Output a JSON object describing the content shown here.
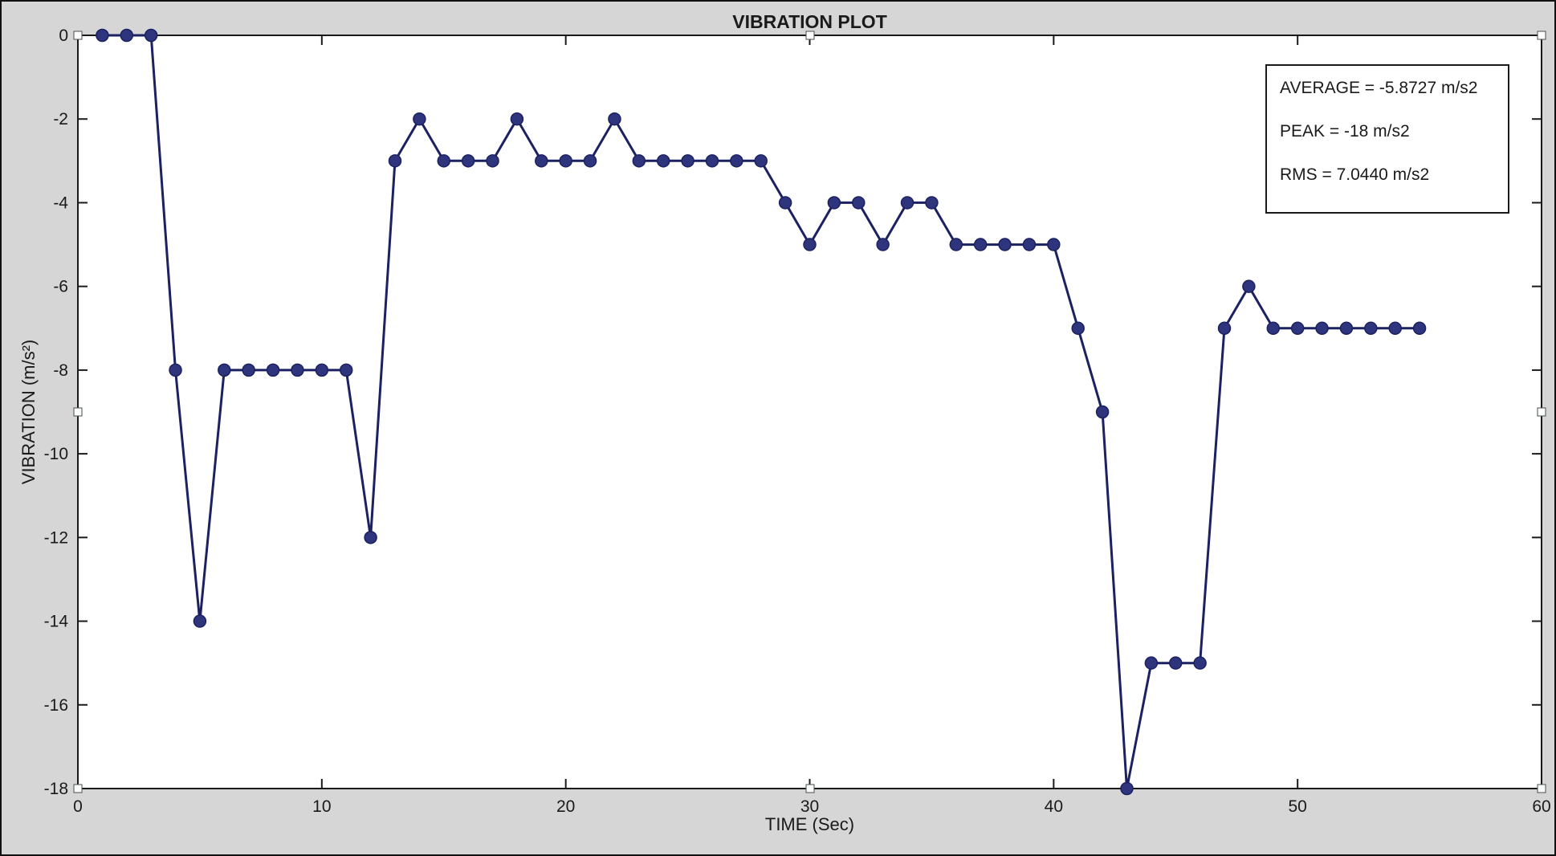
{
  "figure": {
    "title": "VIBRATION PLOT",
    "background_color": "#d6d6d6",
    "plot_background": "#ffffff",
    "axis_color": "#1a1a1a"
  },
  "annotation": {
    "lines": {
      "average": "AVERAGE = -5.8727 m/s2",
      "peak": "PEAK = -18 m/s2",
      "rms": "RMS = 7.0440 m/s2"
    }
  },
  "chart_data": {
    "type": "line",
    "title": "VIBRATION PLOT",
    "xlabel": "TIME (Sec)",
    "ylabel": "VIBRATION (m/s²)",
    "xlim": [
      0,
      60
    ],
    "ylim": [
      -18,
      0
    ],
    "xticks": [
      0,
      10,
      20,
      30,
      40,
      50,
      60
    ],
    "yticks": [
      0,
      -2,
      -4,
      -6,
      -8,
      -10,
      -12,
      -14,
      -16,
      -18
    ],
    "grid": false,
    "legend": "none",
    "line_color": "#1b2161",
    "marker_color": "#2f357c",
    "marker_style": "filled-circle",
    "series": [
      {
        "name": "vibration",
        "x": [
          1,
          2,
          3,
          4,
          5,
          6,
          7,
          8,
          9,
          10,
          11,
          12,
          13,
          14,
          15,
          16,
          17,
          18,
          19,
          20,
          21,
          22,
          23,
          24,
          25,
          26,
          27,
          28,
          29,
          30,
          31,
          32,
          33,
          34,
          35,
          36,
          37,
          38,
          39,
          40,
          41,
          42,
          43,
          44,
          45,
          46,
          47,
          48,
          49,
          50,
          51,
          52,
          53,
          54,
          55
        ],
        "y": [
          0,
          0,
          0,
          -8,
          -14,
          -8,
          -8,
          -8,
          -8,
          -8,
          -8,
          -12,
          -3,
          -2,
          -3,
          -3,
          -3,
          -2,
          -3,
          -3,
          -3,
          -2,
          -3,
          -3,
          -3,
          -3,
          -3,
          -3,
          -4,
          -5,
          -4,
          -4,
          -5,
          -4,
          -4,
          -5,
          -5,
          -5,
          -5,
          -5,
          -7,
          -9,
          -18,
          -15,
          -15,
          -15,
          -7,
          -6,
          -7,
          -7,
          -7,
          -7,
          -7,
          -7,
          -7
        ]
      }
    ],
    "stats": {
      "average": "-5.8727 m/s2",
      "peak": "-18 m/s2",
      "rms": "7.0440 m/s2"
    }
  }
}
